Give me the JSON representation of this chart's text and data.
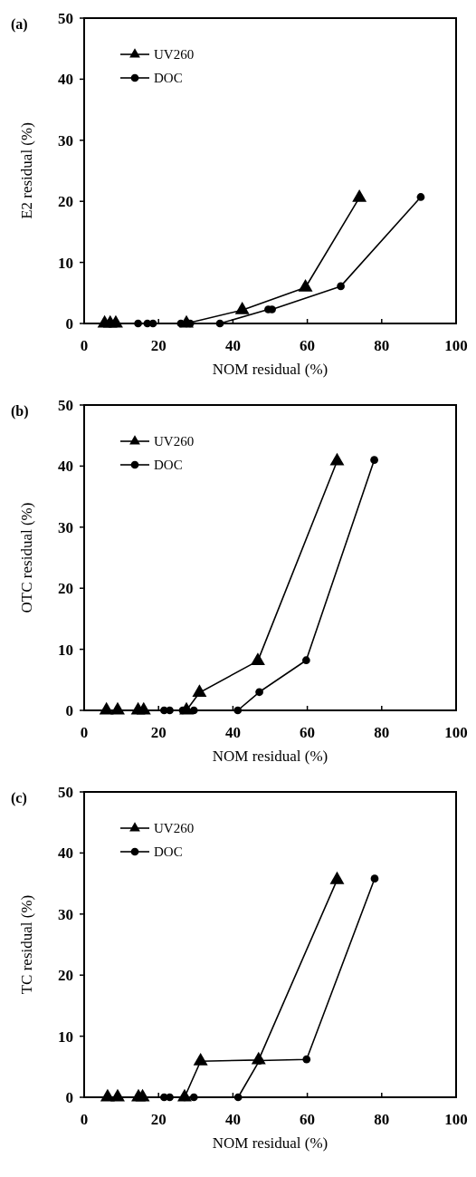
{
  "chart_data": [
    {
      "type": "line",
      "title": "(a)",
      "xlabel": "NOM residual  (%)",
      "ylabel": "E2 residual  (%)",
      "xlim": [
        0,
        100
      ],
      "xticks": [
        0,
        20,
        40,
        60,
        80,
        100
      ],
      "ylim": [
        0,
        50
      ],
      "yticks": [
        0,
        10,
        20,
        30,
        40,
        50
      ],
      "legend": "top left",
      "grid": false,
      "series": [
        {
          "name": "UV260",
          "color": "#000000",
          "marker": "triangle",
          "x": [
            5.5,
            7,
            8.5,
            27.5,
            42.5,
            59.5,
            74
          ],
          "values": [
            0,
            0,
            0,
            0,
            2.2,
            5.9,
            20.6
          ]
        },
        {
          "name": "DOC",
          "color": "#000000",
          "marker": "circle",
          "x": [
            14.5,
            17,
            18.5,
            26,
            27.5,
            28.5,
            36.5,
            49.5,
            50.5,
            69,
            90.5
          ],
          "values": [
            0,
            0,
            0,
            0,
            0,
            0,
            0,
            2.3,
            2.3,
            6.1,
            20.7
          ]
        }
      ]
    },
    {
      "type": "line",
      "title": "(b)",
      "xlabel": "NOM residual  (%)",
      "ylabel": "OTC residual (%)",
      "xlim": [
        0,
        100
      ],
      "xticks": [
        0,
        20,
        40,
        60,
        80,
        100
      ],
      "ylim": [
        0,
        50
      ],
      "yticks": [
        0,
        10,
        20,
        30,
        40,
        50
      ],
      "legend": "top left",
      "grid": false,
      "series": [
        {
          "name": "UV260",
          "color": "#000000",
          "marker": "triangle",
          "x": [
            6,
            9,
            14.5,
            16,
            27.5,
            31,
            46.7,
            68
          ],
          "values": [
            0,
            0,
            0,
            0,
            0,
            2.9,
            8.1,
            40.8
          ]
        },
        {
          "name": "DOC",
          "color": "#000000",
          "marker": "circle",
          "x": [
            21.5,
            23,
            26.5,
            29.5,
            41.3,
            47.1,
            59.7,
            78
          ],
          "values": [
            0,
            0,
            0,
            0,
            0,
            3,
            8.2,
            41
          ]
        }
      ]
    },
    {
      "type": "line",
      "title": "(c)",
      "xlabel": "NOM residual  (%)",
      "ylabel": "TC residual  (%)",
      "xlim": [
        0,
        100
      ],
      "xticks": [
        0,
        20,
        40,
        60,
        80,
        100
      ],
      "ylim": [
        0,
        50
      ],
      "yticks": [
        0,
        10,
        20,
        30,
        40,
        50
      ],
      "legend": "top left",
      "grid": false,
      "series": [
        {
          "name": "UV260",
          "color": "#000000",
          "marker": "triangle",
          "x": [
            6.3,
            9,
            14.6,
            15.7,
            27,
            31.3,
            46.9,
            68
          ],
          "values": [
            0,
            0,
            0,
            0,
            0,
            5.9,
            6.1,
            35.6
          ]
        },
        {
          "name": "DOC",
          "color": "#000000",
          "marker": "circle",
          "x": [
            21.5,
            23,
            27,
            29.5,
            41.4,
            47.1,
            59.8,
            78.1
          ],
          "values": [
            0,
            0,
            0,
            0,
            0,
            6,
            6.2,
            35.8
          ]
        }
      ]
    }
  ]
}
